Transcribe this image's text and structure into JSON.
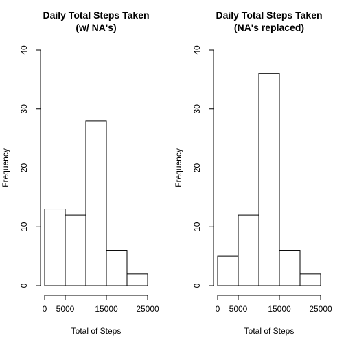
{
  "chart_data": [
    {
      "type": "bar",
      "title": [
        "Daily Total Steps Taken",
        "(w/ NA's)"
      ],
      "xlabel": "Total of Steps",
      "ylabel": "Frequency",
      "bins": [
        [
          0,
          5000
        ],
        [
          5000,
          10000
        ],
        [
          10000,
          15000
        ],
        [
          15000,
          20000
        ],
        [
          20000,
          25000
        ]
      ],
      "values": [
        13,
        12,
        28,
        6,
        2
      ],
      "xlim": [
        0,
        25000
      ],
      "ylim": [
        0,
        40
      ],
      "xticks": [
        0,
        5000,
        15000,
        25000
      ],
      "xtick_labels": [
        "0",
        "5000",
        "15000",
        "25000"
      ],
      "yticks": [
        0,
        10,
        20,
        30,
        40
      ],
      "ytick_labels": [
        "0",
        "10",
        "20",
        "30",
        "40"
      ],
      "grid": false
    },
    {
      "type": "bar",
      "title": [
        "Daily Total Steps Taken",
        "(NA's replaced)"
      ],
      "xlabel": "Total of Steps",
      "ylabel": "Frequency",
      "bins": [
        [
          0,
          5000
        ],
        [
          5000,
          10000
        ],
        [
          10000,
          15000
        ],
        [
          15000,
          20000
        ],
        [
          20000,
          25000
        ]
      ],
      "values": [
        5,
        12,
        36,
        6,
        2
      ],
      "xlim": [
        0,
        25000
      ],
      "ylim": [
        0,
        40
      ],
      "xticks": [
        0,
        5000,
        15000,
        25000
      ],
      "xtick_labels": [
        "0",
        "5000",
        "15000",
        "25000"
      ],
      "yticks": [
        0,
        10,
        20,
        30,
        40
      ],
      "ytick_labels": [
        "0",
        "10",
        "20",
        "30",
        "40"
      ],
      "grid": false
    }
  ]
}
